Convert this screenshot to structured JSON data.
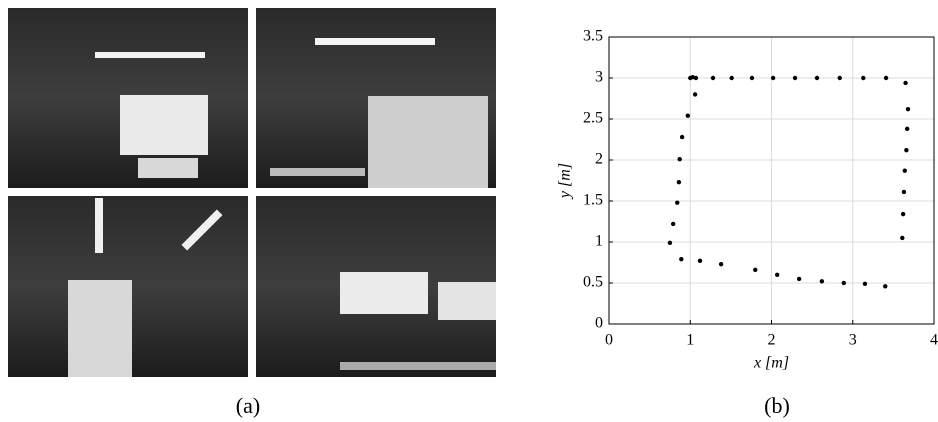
{
  "chart_data": {
    "type": "scatter",
    "x_label": "x [m]",
    "y_label": "y [m]",
    "x": [
      1.0,
      1.03,
      1.07,
      1.28,
      1.51,
      1.76,
      2.02,
      2.29,
      2.56,
      2.84,
      3.13,
      3.41,
      3.65,
      3.68,
      3.67,
      3.66,
      3.64,
      3.63,
      3.62,
      3.61,
      3.4,
      3.15,
      2.89,
      2.62,
      2.34,
      2.07,
      1.8,
      1.38,
      1.12,
      0.89,
      0.75,
      0.79,
      0.84,
      0.86,
      0.87,
      0.9,
      0.97,
      1.06
    ],
    "values": [
      3.0,
      3.01,
      3.0,
      3.0,
      3.0,
      3.0,
      3.0,
      3.0,
      3.0,
      3.0,
      3.0,
      3.0,
      2.94,
      2.62,
      2.38,
      2.12,
      1.87,
      1.61,
      1.34,
      1.05,
      0.46,
      0.49,
      0.5,
      0.52,
      0.55,
      0.6,
      0.66,
      0.73,
      0.77,
      0.79,
      0.99,
      1.22,
      1.48,
      1.73,
      2.01,
      2.28,
      2.54,
      2.8
    ],
    "color": "#000000",
    "xlim": [
      0,
      4
    ],
    "xticks": [
      0,
      1,
      2,
      3,
      4
    ],
    "ylim": [
      0,
      3.5
    ],
    "yticks": [
      0,
      0.5,
      1,
      1.5,
      2,
      2.5,
      3,
      3.5
    ],
    "grid": true
  },
  "captions": [
    "(a)",
    "(b)"
  ]
}
